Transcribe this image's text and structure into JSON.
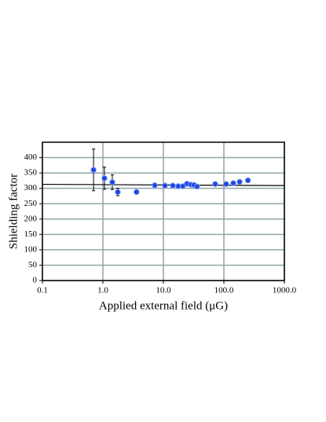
{
  "chart_data": {
    "type": "scatter",
    "xlabel": "Applied external field (μG)",
    "ylabel": "Shielding factor",
    "xscale": "log",
    "xlim": [
      0.1,
      1000
    ],
    "ylim": [
      0,
      450
    ],
    "xticks": [
      0.1,
      {
        "value": 1,
        "label": "1.0"
      },
      {
        "value": 10,
        "label": "10.0"
      },
      {
        "value": 100,
        "label": "100.0"
      },
      {
        "value": 1000,
        "label": "1000.0"
      }
    ],
    "yticks": [
      0,
      50,
      100,
      150,
      200,
      250,
      300,
      350,
      400
    ],
    "grid": true,
    "grid_color": "#8fa6a6",
    "series": [
      {
        "color": "#1f44e0",
        "x": [
          0.7,
          1.06,
          1.43,
          1.76,
          3.6,
          7.2,
          10.6,
          14.3,
          17.6,
          21,
          24.5,
          28.5,
          32,
          36,
          72,
          109,
          143,
          182,
          250
        ],
        "values": [
          360,
          333,
          320,
          288,
          288,
          310,
          309,
          309,
          307,
          307,
          315,
          312,
          311,
          306,
          314,
          314,
          317,
          321,
          326
        ],
        "errors": [
          68,
          36,
          24,
          12,
          null,
          null,
          null,
          null,
          null,
          null,
          null,
          null,
          null,
          null,
          null,
          null,
          null,
          null,
          null
        ]
      }
    ],
    "fit": {
      "color": "#000000",
      "x": [
        0.1,
        1000
      ],
      "values": [
        313,
        309
      ]
    }
  }
}
